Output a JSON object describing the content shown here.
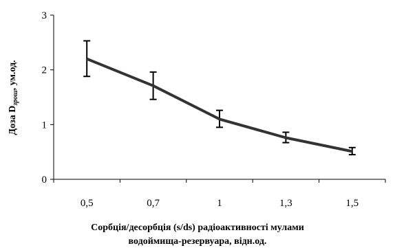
{
  "chart_data": {
    "type": "line",
    "categories": [
      "0,5",
      "0,7",
      "1",
      "1,3",
      "1,5"
    ],
    "series": [
      {
        "values": [
          2.2,
          1.71,
          1.1,
          0.76,
          0.51
        ],
        "error_low": [
          1.88,
          1.46,
          0.95,
          0.67,
          0.45
        ],
        "error_high": [
          2.53,
          1.96,
          1.26,
          0.86,
          0.58
        ],
        "color": "#333333"
      }
    ],
    "ylim": [
      0,
      3
    ],
    "yticks": [
      "0",
      "1",
      "2",
      "3"
    ],
    "ylabel": {
      "prefix": "Доза D",
      "subscript": "зрош",
      "suffix": ", ум.од."
    },
    "xlabel_lines": [
      "Сорбція/десорбція (s/ds) радіоактивності мулами",
      "водоймища-резервуара, відн.од."
    ],
    "grid": false,
    "legend": "none"
  }
}
